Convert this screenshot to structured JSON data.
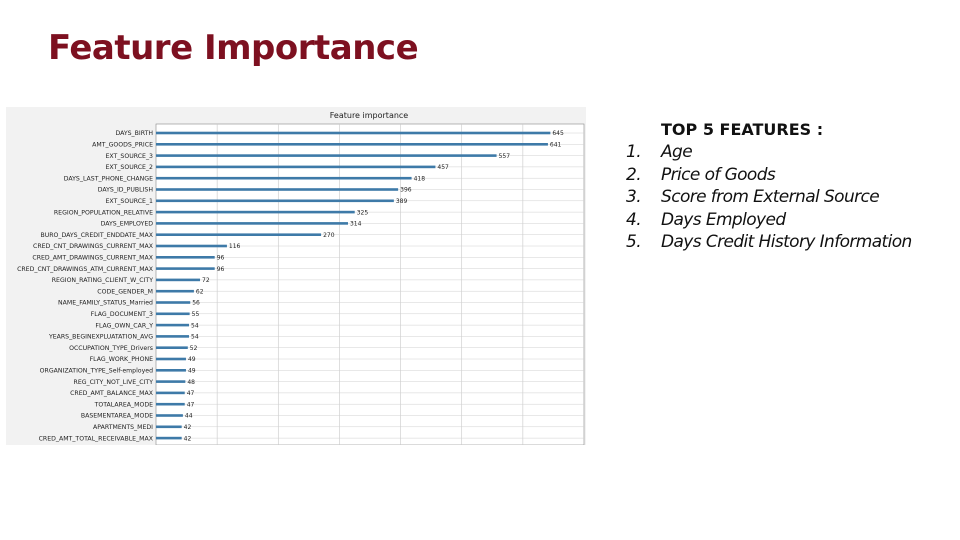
{
  "slide": {
    "title": "Feature Importance"
  },
  "top_features": {
    "heading": "TOP 5 FEATURES :",
    "items": [
      {
        "num": "1.",
        "label": "Age"
      },
      {
        "num": "2.",
        "label": "Price of Goods"
      },
      {
        "num": "3.",
        "label": "Score from External Source"
      },
      {
        "num": "4.",
        "label": "Days Employed"
      },
      {
        "num": "5.",
        "label": "Days Credit History Information"
      }
    ]
  },
  "chart_data": {
    "type": "bar",
    "orientation": "horizontal",
    "title": "Feature importance",
    "xlabel": "",
    "ylabel": "",
    "xlim": [
      0,
      700
    ],
    "grid": true,
    "bar_color": "#3e7aa8",
    "categories": [
      "DAYS_BIRTH",
      "AMT_GOODS_PRICE",
      "EXT_SOURCE_3",
      "EXT_SOURCE_2",
      "DAYS_LAST_PHONE_CHANGE",
      "DAYS_ID_PUBLISH",
      "EXT_SOURCE_1",
      "REGION_POPULATION_RELATIVE",
      "DAYS_EMPLOYED",
      "BURO_DAYS_CREDIT_ENDDATE_MAX",
      "CRED_CNT_DRAWINGS_CURRENT_MAX",
      "CRED_AMT_DRAWINGS_CURRENT_MAX",
      "CRED_CNT_DRAWINGS_ATM_CURRENT_MAX",
      "REGION_RATING_CLIENT_W_CITY",
      "CODE_GENDER_M",
      "NAME_FAMILY_STATUS_Married",
      "FLAG_DOCUMENT_3",
      "FLAG_OWN_CAR_Y",
      "YEARS_BEGINEXPLUATATION_AVG",
      "OCCUPATION_TYPE_Drivers",
      "FLAG_WORK_PHONE",
      "ORGANIZATION_TYPE_Self-employed",
      "REG_CITY_NOT_LIVE_CITY",
      "CRED_AMT_BALANCE_MAX",
      "TOTALAREA_MODE",
      "BASEMENTAREA_MODE",
      "APARTMENTS_MEDI",
      "CRED_AMT_TOTAL_RECEIVABLE_MAX"
    ],
    "values": [
      645,
      641,
      557,
      457,
      418,
      396,
      389,
      325,
      314,
      270,
      116,
      96,
      96,
      72,
      62,
      56,
      55,
      54,
      54,
      52,
      49,
      49,
      48,
      47,
      47,
      44,
      42,
      42
    ]
  }
}
